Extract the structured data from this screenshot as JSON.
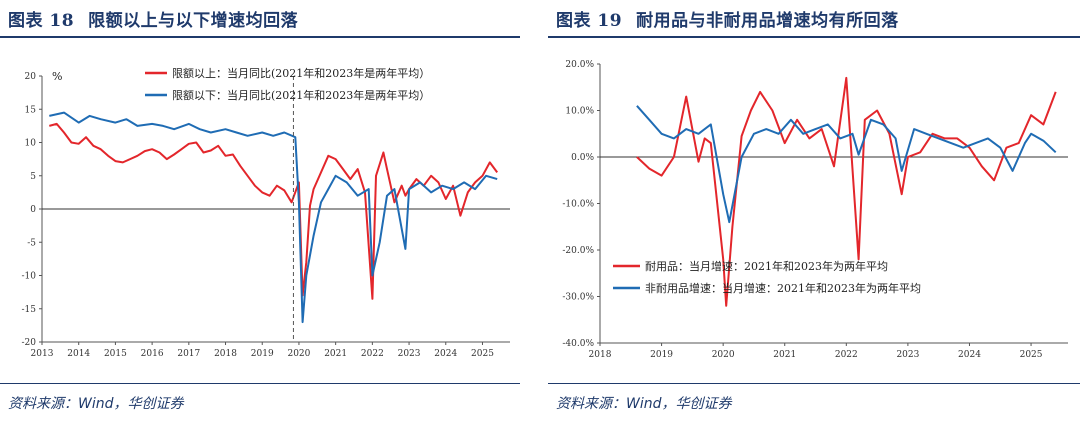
{
  "colors": {
    "red": "#e3262b",
    "blue": "#1f6cb4",
    "navy": "#1f3a6b"
  },
  "charts": [
    {
      "fig_num": "图表 18",
      "fig_title": "限额以上与以下增速均回落",
      "source": "资料来源：Wind，华创证券",
      "unit": "%",
      "legend": [
        "限额以上：当月同比(2021年和2023年是两年平均）",
        "限额以下：当月同比(2021年和2023年是两年平均）"
      ],
      "y_ticks": [
        "20",
        "15",
        "10",
        "5",
        "0",
        "-5",
        "-10",
        "-15",
        "-20"
      ],
      "x_ticks": [
        "2013",
        "2014",
        "2015",
        "2016",
        "2017",
        "2018",
        "2019",
        "2020",
        "2021",
        "2022",
        "2023",
        "2024",
        "2025"
      ]
    },
    {
      "fig_num": "图表 19",
      "fig_title": "耐用品与非耐用品增速均有所回落",
      "source": "资料来源：Wind，华创证券",
      "legend": [
        "耐用品：当月增速：2021年和2023年为两年平均",
        "非耐用品增速：当月增速：2021年和2023年为两年平均"
      ],
      "y_ticks": [
        "20.0%",
        "10.0%",
        "0.0%",
        "-10.0%",
        "-20.0%",
        "-30.0%",
        "-40.0%"
      ],
      "x_ticks": [
        "2018",
        "2019",
        "2020",
        "2021",
        "2022",
        "2023",
        "2024",
        "2025"
      ]
    }
  ],
  "chart_data": [
    {
      "type": "line",
      "title": "限额以上与以下增速均回落",
      "ylim": [
        -20,
        20
      ],
      "x_range": [
        2013,
        2025.75
      ],
      "series": [
        {
          "name": "限额以上：当月同比(2021年和2023年是两年平均）",
          "color": "#e3262b",
          "x": [
            2013.2,
            2013.4,
            2013.6,
            2013.8,
            2014.0,
            2014.2,
            2014.4,
            2014.6,
            2014.8,
            2015.0,
            2015.2,
            2015.4,
            2015.6,
            2015.8,
            2016.0,
            2016.2,
            2016.4,
            2016.6,
            2016.8,
            2017.0,
            2017.2,
            2017.4,
            2017.6,
            2017.8,
            2018.0,
            2018.2,
            2018.4,
            2018.6,
            2018.8,
            2019.0,
            2019.2,
            2019.4,
            2019.6,
            2019.8,
            2020.0,
            2020.1,
            2020.2,
            2020.3,
            2020.4,
            2020.6,
            2020.8,
            2021.0,
            2021.2,
            2021.4,
            2021.6,
            2021.8,
            2022.0,
            2022.1,
            2022.3,
            2022.4,
            2022.6,
            2022.8,
            2022.9,
            2023.0,
            2023.2,
            2023.4,
            2023.6,
            2023.8,
            2024.0,
            2024.2,
            2024.4,
            2024.6,
            2024.8,
            2025.0,
            2025.2,
            2025.4
          ],
          "y": [
            12.5,
            12.8,
            11.5,
            10.0,
            9.8,
            10.8,
            9.5,
            9.0,
            8.0,
            7.2,
            7.0,
            7.5,
            8.0,
            8.7,
            9.0,
            8.5,
            7.5,
            8.2,
            9.0,
            9.8,
            10.0,
            8.5,
            8.8,
            9.5,
            8.0,
            8.2,
            6.5,
            5.0,
            3.5,
            2.5,
            2.0,
            3.5,
            2.8,
            1.0,
            4.0,
            -13.0,
            -8.0,
            0.5,
            3.0,
            5.5,
            8.0,
            7.5,
            6.0,
            4.5,
            6.0,
            2.5,
            -13.5,
            5.0,
            8.5,
            6.0,
            1.0,
            3.5,
            2.0,
            3.0,
            4.5,
            3.5,
            5.0,
            4.0,
            1.5,
            3.5,
            -1.0,
            2.5,
            4.0,
            5.0,
            7.0,
            5.5
          ]
        },
        {
          "name": "限额以下：当月同比(2021年和2023年是两年平均）",
          "color": "#1f6cb4",
          "x": [
            2013.2,
            2013.6,
            2014.0,
            2014.3,
            2014.6,
            2015.0,
            2015.3,
            2015.6,
            2016.0,
            2016.3,
            2016.6,
            2017.0,
            2017.3,
            2017.6,
            2018.0,
            2018.3,
            2018.6,
            2019.0,
            2019.3,
            2019.6,
            2019.9,
            2020.0,
            2020.1,
            2020.2,
            2020.4,
            2020.6,
            2020.8,
            2021.0,
            2021.3,
            2021.6,
            2021.9,
            2022.0,
            2022.2,
            2022.4,
            2022.6,
            2022.9,
            2023.0,
            2023.3,
            2023.6,
            2023.9,
            2024.2,
            2024.5,
            2024.8,
            2025.1,
            2025.4
          ],
          "y": [
            14.0,
            14.5,
            13.0,
            14.0,
            13.5,
            13.0,
            13.5,
            12.5,
            12.8,
            12.5,
            12.0,
            12.8,
            12.0,
            11.5,
            12.0,
            11.5,
            11.0,
            11.5,
            11.0,
            11.5,
            10.8,
            1.0,
            -17.0,
            -10.0,
            -4.0,
            1.0,
            3.0,
            5.0,
            4.0,
            2.0,
            3.0,
            -10.0,
            -5.0,
            2.0,
            3.0,
            -6.0,
            3.0,
            4.0,
            2.5,
            3.5,
            3.0,
            4.0,
            3.0,
            5.0,
            4.5
          ]
        }
      ]
    },
    {
      "type": "line",
      "title": "耐用品与非耐用品增速均有所回落",
      "ylim": [
        -40,
        20
      ],
      "x_range": [
        2018,
        2025.6
      ],
      "series": [
        {
          "name": "耐用品：当月增速：2021年和2023年为两年平均",
          "color": "#e3262b",
          "x": [
            2018.6,
            2018.8,
            2019.0,
            2019.2,
            2019.4,
            2019.6,
            2019.7,
            2019.8,
            2020.0,
            2020.05,
            2020.15,
            2020.3,
            2020.45,
            2020.6,
            2020.8,
            2021.0,
            2021.2,
            2021.4,
            2021.6,
            2021.8,
            2022.0,
            2022.2,
            2022.3,
            2022.5,
            2022.7,
            2022.9,
            2023.0,
            2023.2,
            2023.4,
            2023.6,
            2023.8,
            2024.0,
            2024.2,
            2024.4,
            2024.6,
            2024.8,
            2025.0,
            2025.2,
            2025.4
          ],
          "y": [
            0.0,
            -2.5,
            -4.0,
            0.0,
            13.0,
            -1.0,
            4.0,
            3.0,
            -22.0,
            -32.0,
            -15.0,
            4.5,
            10.0,
            14.0,
            10.0,
            3.0,
            8.0,
            4.0,
            6.0,
            -2.0,
            17.0,
            -22.0,
            8.0,
            10.0,
            5.0,
            -8.0,
            0.0,
            1.0,
            5.0,
            4.0,
            4.0,
            2.0,
            -2.0,
            -5.0,
            2.0,
            3.0,
            9.0,
            7.0,
            14.0
          ]
        },
        {
          "name": "非耐用品增速：当月增速：2021年和2023年为两年平均",
          "color": "#1f6cb4",
          "x": [
            2018.6,
            2018.8,
            2019.0,
            2019.2,
            2019.4,
            2019.6,
            2019.8,
            2020.0,
            2020.1,
            2020.3,
            2020.5,
            2020.7,
            2020.9,
            2021.1,
            2021.3,
            2021.5,
            2021.7,
            2021.9,
            2022.1,
            2022.2,
            2022.4,
            2022.6,
            2022.8,
            2022.9,
            2023.1,
            2023.3,
            2023.5,
            2023.7,
            2023.9,
            2024.1,
            2024.3,
            2024.5,
            2024.7,
            2024.9,
            2025.0,
            2025.2,
            2025.4
          ],
          "y": [
            11.0,
            8.0,
            5.0,
            4.0,
            6.0,
            5.0,
            7.0,
            -8.0,
            -14.0,
            0.0,
            5.0,
            6.0,
            5.0,
            8.0,
            5.0,
            6.0,
            7.0,
            4.0,
            5.0,
            0.5,
            8.0,
            7.0,
            4.0,
            -3.0,
            6.0,
            5.0,
            4.0,
            3.0,
            2.0,
            3.0,
            4.0,
            2.0,
            -3.0,
            3.0,
            5.0,
            3.5,
            1.0
          ]
        }
      ]
    }
  ]
}
